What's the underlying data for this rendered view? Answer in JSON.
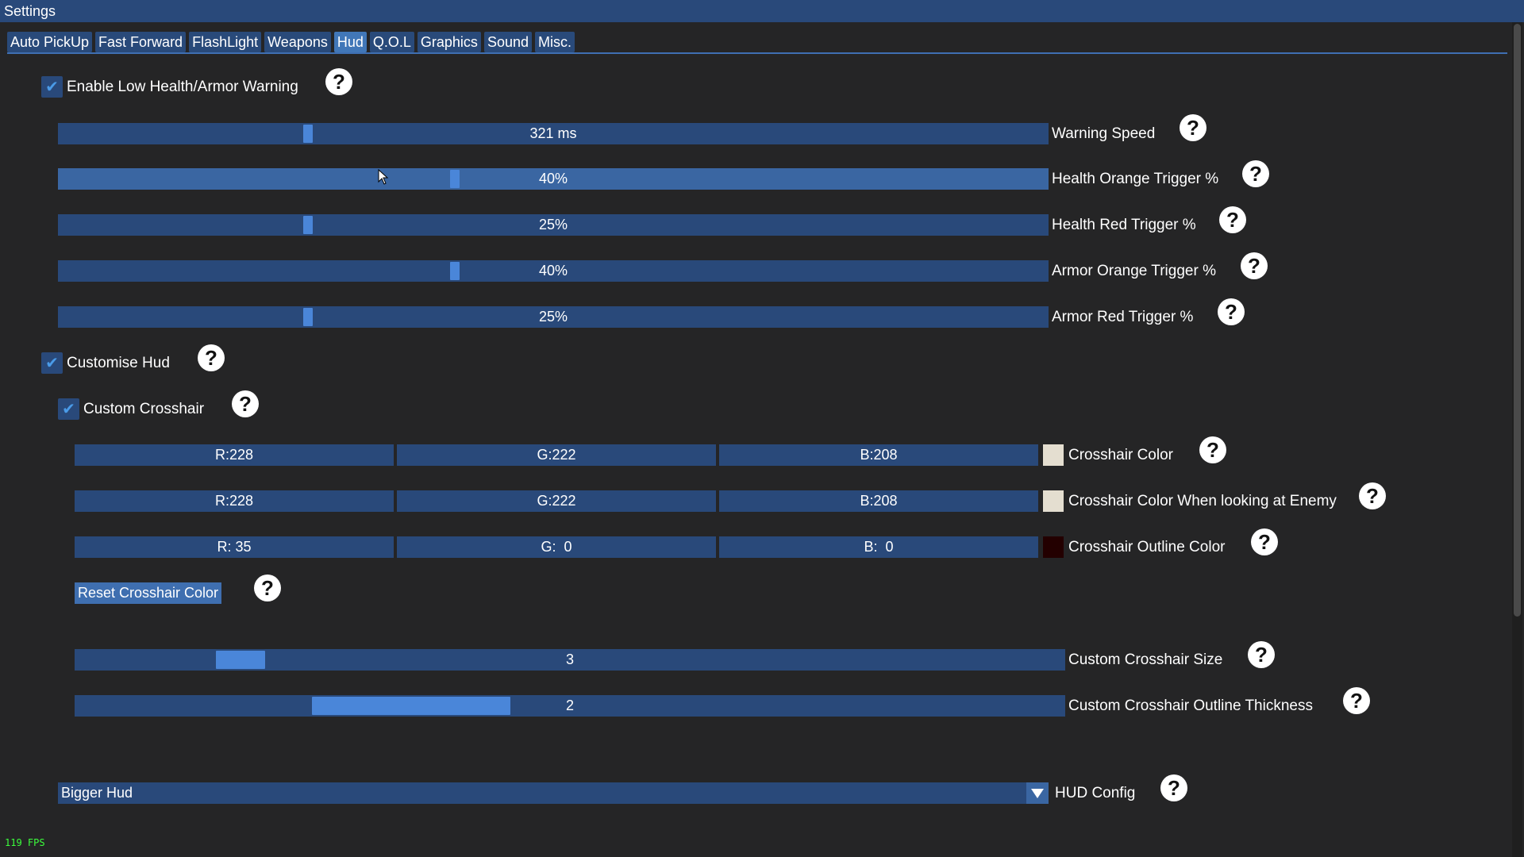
{
  "window": {
    "title": "Settings"
  },
  "tabs": [
    {
      "label": "Auto PickUp",
      "active": false
    },
    {
      "label": "Fast Forward",
      "active": false
    },
    {
      "label": "FlashLight",
      "active": false
    },
    {
      "label": "Weapons",
      "active": false
    },
    {
      "label": "Hud",
      "active": true
    },
    {
      "label": "Q.O.L",
      "active": false
    },
    {
      "label": "Graphics",
      "active": false
    },
    {
      "label": "Sound",
      "active": false
    },
    {
      "label": "Misc.",
      "active": false
    }
  ],
  "low_health": {
    "checkbox_label": "Enable Low Health/Armor Warning",
    "checked": true,
    "sliders": [
      {
        "display": "321 ms",
        "label": "Warning Speed",
        "fraction": 0.25
      },
      {
        "display": "40%",
        "label": "Health Orange Trigger %",
        "fraction": 0.4
      },
      {
        "display": "25%",
        "label": "Health Red Trigger %",
        "fraction": 0.25
      },
      {
        "display": "40%",
        "label": "Armor Orange Trigger %",
        "fraction": 0.4
      },
      {
        "display": "25%",
        "label": "Armor Red Trigger %",
        "fraction": 0.25
      }
    ]
  },
  "customise_hud": {
    "checkbox_label": "Customise Hud",
    "checked": true
  },
  "custom_crosshair": {
    "checkbox_label": "Custom Crosshair",
    "checked": true,
    "colors": [
      {
        "r": "R:228",
        "g": "G:222",
        "b": "B:208",
        "swatch": "#e4ded0",
        "label": "Crosshair Color"
      },
      {
        "r": "R:228",
        "g": "G:222",
        "b": "B:208",
        "swatch": "#e4ded0",
        "label": "Crosshair Color When looking at Enemy"
      },
      {
        "r": "R: 35",
        "g": "G:  0",
        "b": "B:  0",
        "swatch": "#230000",
        "label": "Crosshair Outline Color"
      }
    ],
    "reset_button": "Reset Crosshair Color",
    "size": {
      "display": "3",
      "label": "Custom Crosshair Size",
      "fraction": 0.15
    },
    "thickness": {
      "display": "2",
      "label": "Custom Crosshair Outline Thickness",
      "fraction": 0.3
    }
  },
  "hud_config": {
    "value": "Bigger Hud",
    "label": "HUD Config"
  },
  "fps": "119 FPS",
  "help_glyph": "?",
  "check_glyph": "✔",
  "colors": {
    "accent": "#4a86d9",
    "frame": "#29497a",
    "background": "#252526"
  }
}
